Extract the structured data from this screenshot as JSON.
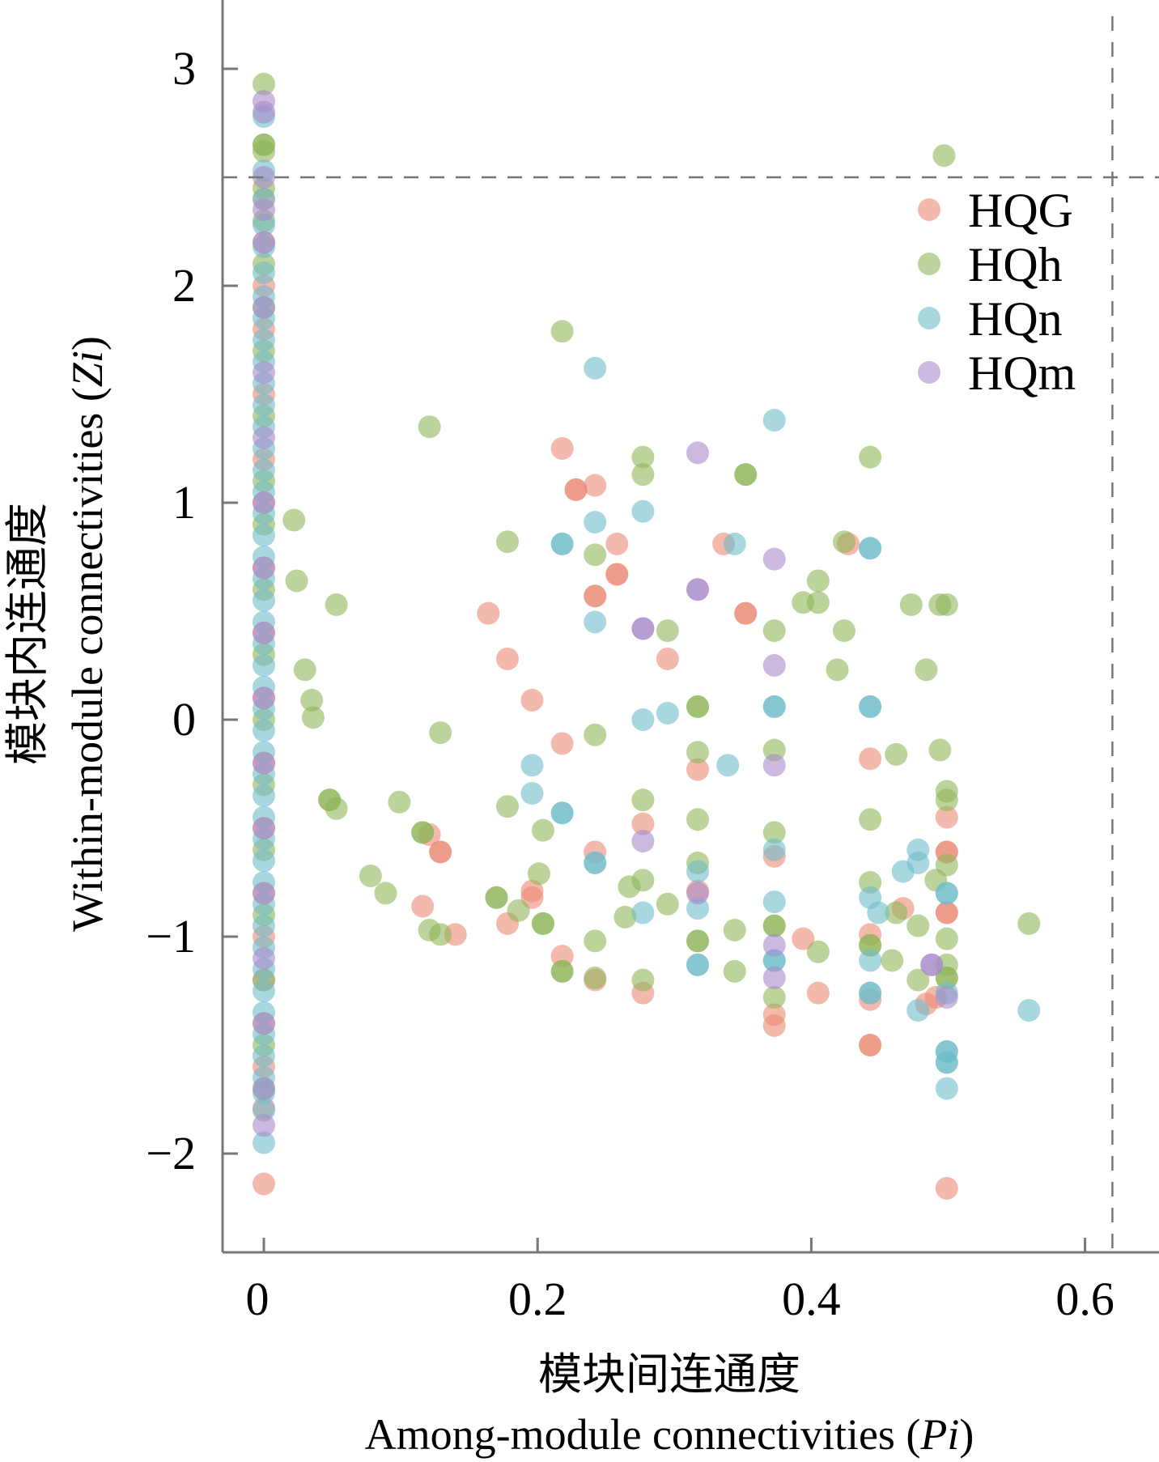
{
  "chart_data": {
    "type": "scatter",
    "title": "",
    "xlabel_cn": "模块间连通度",
    "xlabel_en": "Among-module connectivities (Pi)",
    "ylabel_cn": "模块内连通度",
    "ylabel_en": "Within-module connectivities (Zi)",
    "xlim": [
      -0.015,
      0.655
    ],
    "ylim": [
      -2.45,
      3.3
    ],
    "xticks": [
      0,
      0.2,
      0.4,
      0.6
    ],
    "xtick_labels": [
      "0",
      "0.2",
      "0.4",
      "0.6"
    ],
    "yticks": [
      3,
      2,
      1,
      0,
      -1,
      -2
    ],
    "ytick_labels": [
      "3",
      "2",
      "1",
      "0",
      "−1",
      "−2"
    ],
    "thresholds": {
      "zi": 2.5,
      "pi": 0.62
    },
    "grid": false,
    "legend_position": "top-right",
    "series": [
      {
        "name": "HQG",
        "color": "#EB8A74",
        "zero_pi_zi": [
          2.4,
          2.2,
          2.0,
          1.8,
          1.5,
          1.2,
          1.0,
          0.7,
          0.4,
          0.1,
          -0.2,
          -0.5,
          -0.8,
          -1.0,
          -1.2,
          -1.4,
          -1.6,
          -1.79,
          -2.14
        ],
        "points": [
          [
            0.218,
            1.25
          ],
          [
            0.228,
            1.06
          ],
          [
            0.228,
            1.06
          ],
          [
            0.242,
            1.08
          ],
          [
            0.242,
            0.57
          ],
          [
            0.242,
            0.57
          ],
          [
            0.258,
            0.81
          ],
          [
            0.258,
            0.67
          ],
          [
            0.258,
            0.67
          ],
          [
            0.164,
            0.49
          ],
          [
            0.178,
            0.28
          ],
          [
            0.196,
            0.09
          ],
          [
            0.218,
            -0.11
          ],
          [
            0.121,
            -0.53
          ],
          [
            0.129,
            -0.61
          ],
          [
            0.129,
            -0.61
          ],
          [
            0.116,
            -0.86
          ],
          [
            0.14,
            -0.99
          ],
          [
            0.178,
            -0.94
          ],
          [
            0.196,
            -0.79
          ],
          [
            0.196,
            -0.82
          ],
          [
            0.218,
            -1.09
          ],
          [
            0.242,
            -0.61
          ],
          [
            0.242,
            -1.2
          ],
          [
            0.277,
            -0.48
          ],
          [
            0.277,
            -1.26
          ],
          [
            0.295,
            0.28
          ],
          [
            0.317,
            -0.23
          ],
          [
            0.317,
            -0.79
          ],
          [
            0.336,
            0.81
          ],
          [
            0.352,
            0.49
          ],
          [
            0.352,
            0.49
          ],
          [
            0.373,
            -0.63
          ],
          [
            0.373,
            -1.36
          ],
          [
            0.373,
            -1.41
          ],
          [
            0.394,
            -1.01
          ],
          [
            0.405,
            -1.26
          ],
          [
            0.427,
            0.81
          ],
          [
            0.443,
            -0.18
          ],
          [
            0.443,
            -0.99
          ],
          [
            0.443,
            -1.29
          ],
          [
            0.443,
            -1.5
          ],
          [
            0.443,
            -1.5
          ],
          [
            0.467,
            -0.87
          ],
          [
            0.484,
            -1.31
          ],
          [
            0.491,
            -1.28
          ],
          [
            0.499,
            -0.45
          ],
          [
            0.499,
            -0.61
          ],
          [
            0.499,
            -0.61
          ],
          [
            0.499,
            -0.89
          ],
          [
            0.499,
            -0.89
          ],
          [
            0.499,
            -2.16
          ]
        ]
      },
      {
        "name": "HQh",
        "color": "#8FB55A",
        "zero_pi_zi": [
          2.93,
          2.65,
          2.65,
          2.62,
          2.45,
          2.3,
          2.1,
          1.9,
          1.7,
          1.4,
          1.1,
          0.9,
          0.6,
          0.3,
          0.0,
          -0.3,
          -0.6,
          -0.9,
          -1.2,
          -1.5,
          -1.7
        ],
        "points": [
          [
            0.497,
            2.6
          ],
          [
            0.218,
            1.79
          ],
          [
            0.121,
            1.35
          ],
          [
            0.022,
            0.92
          ],
          [
            0.024,
            0.64
          ],
          [
            0.053,
            0.53
          ],
          [
            0.03,
            0.23
          ],
          [
            0.035,
            0.09
          ],
          [
            0.036,
            0.01
          ],
          [
            0.048,
            -0.37
          ],
          [
            0.048,
            -0.37
          ],
          [
            0.053,
            -0.41
          ],
          [
            0.129,
            -0.06
          ],
          [
            0.099,
            -0.38
          ],
          [
            0.116,
            -0.52
          ],
          [
            0.116,
            -0.52
          ],
          [
            0.078,
            -0.72
          ],
          [
            0.089,
            -0.8
          ],
          [
            0.121,
            -0.97
          ],
          [
            0.129,
            -0.99
          ],
          [
            0.17,
            -0.82
          ],
          [
            0.17,
            -0.82
          ],
          [
            0.178,
            -0.4
          ],
          [
            0.178,
            0.82
          ],
          [
            0.186,
            -0.88
          ],
          [
            0.201,
            -0.71
          ],
          [
            0.204,
            -0.51
          ],
          [
            0.204,
            -0.94
          ],
          [
            0.204,
            -0.94
          ],
          [
            0.218,
            -1.16
          ],
          [
            0.218,
            -1.16
          ],
          [
            0.242,
            0.76
          ],
          [
            0.242,
            -0.07
          ],
          [
            0.242,
            -1.02
          ],
          [
            0.242,
            -1.19
          ],
          [
            0.264,
            -0.91
          ],
          [
            0.267,
            -0.77
          ],
          [
            0.277,
            1.21
          ],
          [
            0.277,
            1.13
          ],
          [
            0.277,
            -0.37
          ],
          [
            0.277,
            -0.74
          ],
          [
            0.277,
            -1.2
          ],
          [
            0.295,
            0.41
          ],
          [
            0.295,
            -0.85
          ],
          [
            0.317,
            0.06
          ],
          [
            0.317,
            0.06
          ],
          [
            0.317,
            -0.15
          ],
          [
            0.317,
            -0.46
          ],
          [
            0.317,
            -0.66
          ],
          [
            0.317,
            -1.02
          ],
          [
            0.317,
            -1.02
          ],
          [
            0.344,
            -0.97
          ],
          [
            0.344,
            -1.16
          ],
          [
            0.352,
            1.13
          ],
          [
            0.352,
            1.13
          ],
          [
            0.373,
            0.41
          ],
          [
            0.373,
            -0.14
          ],
          [
            0.373,
            -0.52
          ],
          [
            0.373,
            -0.95
          ],
          [
            0.373,
            -0.95
          ],
          [
            0.373,
            -1.28
          ],
          [
            0.394,
            0.54
          ],
          [
            0.405,
            0.64
          ],
          [
            0.405,
            0.54
          ],
          [
            0.405,
            -1.07
          ],
          [
            0.419,
            0.23
          ],
          [
            0.424,
            0.82
          ],
          [
            0.424,
            0.41
          ],
          [
            0.443,
            1.21
          ],
          [
            0.443,
            -0.46
          ],
          [
            0.443,
            -0.75
          ],
          [
            0.443,
            -1.04
          ],
          [
            0.443,
            -1.04
          ],
          [
            0.462,
            -0.16
          ],
          [
            0.462,
            -0.89
          ],
          [
            0.459,
            -1.11
          ],
          [
            0.473,
            0.53
          ],
          [
            0.484,
            0.23
          ],
          [
            0.478,
            -0.95
          ],
          [
            0.478,
            -1.2
          ],
          [
            0.491,
            -0.74
          ],
          [
            0.494,
            -0.14
          ],
          [
            0.494,
            0.53
          ],
          [
            0.499,
            0.53
          ],
          [
            0.499,
            -0.33
          ],
          [
            0.499,
            -0.37
          ],
          [
            0.499,
            -0.67
          ],
          [
            0.499,
            -1.01
          ],
          [
            0.499,
            -1.13
          ],
          [
            0.499,
            -1.19
          ],
          [
            0.499,
            -1.19
          ],
          [
            0.559,
            -0.94
          ]
        ]
      },
      {
        "name": "HQn",
        "color": "#6FBCCA",
        "zero_pi_zi": [
          2.78,
          2.53,
          2.4,
          2.28,
          2.18,
          2.06,
          1.95,
          1.85,
          1.75,
          1.65,
          1.55,
          1.45,
          1.35,
          1.25,
          1.15,
          1.05,
          0.95,
          0.85,
          0.75,
          0.65,
          0.55,
          0.45,
          0.35,
          0.25,
          0.15,
          0.05,
          -0.05,
          -0.15,
          -0.25,
          -0.35,
          -0.45,
          -0.55,
          -0.65,
          -0.75,
          -0.85,
          -0.95,
          -1.05,
          -1.15,
          -1.25,
          -1.35,
          -1.45,
          -1.55,
          -1.65,
          -1.72,
          -1.8,
          -1.95
        ],
        "points": [
          [
            0.242,
            1.62
          ],
          [
            0.373,
            1.38
          ],
          [
            0.242,
            0.91
          ],
          [
            0.277,
            0.96
          ],
          [
            0.218,
            0.81
          ],
          [
            0.218,
            0.81
          ],
          [
            0.344,
            0.81
          ],
          [
            0.443,
            0.79
          ],
          [
            0.443,
            0.79
          ],
          [
            0.242,
            0.45
          ],
          [
            0.277,
            0.0
          ],
          [
            0.295,
            0.03
          ],
          [
            0.373,
            0.06
          ],
          [
            0.373,
            0.06
          ],
          [
            0.443,
            0.06
          ],
          [
            0.443,
            0.06
          ],
          [
            0.196,
            -0.21
          ],
          [
            0.196,
            -0.34
          ],
          [
            0.218,
            -0.43
          ],
          [
            0.218,
            -0.43
          ],
          [
            0.242,
            -0.66
          ],
          [
            0.242,
            -0.66
          ],
          [
            0.277,
            -0.89
          ],
          [
            0.317,
            -0.7
          ],
          [
            0.317,
            -0.87
          ],
          [
            0.317,
            -1.13
          ],
          [
            0.317,
            -1.13
          ],
          [
            0.339,
            -0.21
          ],
          [
            0.373,
            -0.6
          ],
          [
            0.373,
            -0.84
          ],
          [
            0.373,
            -1.11
          ],
          [
            0.373,
            -1.11
          ],
          [
            0.443,
            -0.82
          ],
          [
            0.443,
            -1.11
          ],
          [
            0.443,
            -1.26
          ],
          [
            0.443,
            -1.26
          ],
          [
            0.449,
            -0.89
          ],
          [
            0.467,
            -0.7
          ],
          [
            0.478,
            -0.6
          ],
          [
            0.478,
            -0.66
          ],
          [
            0.478,
            -1.34
          ],
          [
            0.499,
            -0.8
          ],
          [
            0.499,
            -0.8
          ],
          [
            0.499,
            -1.26
          ],
          [
            0.499,
            -1.53
          ],
          [
            0.499,
            -1.53
          ],
          [
            0.499,
            -1.58
          ],
          [
            0.499,
            -1.58
          ],
          [
            0.499,
            -1.7
          ],
          [
            0.559,
            -1.34
          ]
        ]
      },
      {
        "name": "HQm",
        "color": "#A98BC9",
        "zero_pi_zi": [
          2.85,
          2.8,
          2.5,
          2.35,
          2.2,
          1.9,
          1.6,
          1.3,
          1.0,
          0.7,
          0.4,
          0.1,
          -0.2,
          -0.5,
          -0.8,
          -1.1,
          -1.4,
          -1.7,
          -1.87
        ],
        "points": [
          [
            0.317,
            1.23
          ],
          [
            0.317,
            0.6
          ],
          [
            0.317,
            0.6
          ],
          [
            0.277,
            0.42
          ],
          [
            0.277,
            0.42
          ],
          [
            0.373,
            0.74
          ],
          [
            0.373,
            0.25
          ],
          [
            0.373,
            -0.21
          ],
          [
            0.277,
            -0.56
          ],
          [
            0.317,
            -0.8
          ],
          [
            0.373,
            -1.04
          ],
          [
            0.373,
            -1.19
          ],
          [
            0.488,
            -1.13
          ],
          [
            0.488,
            -1.13
          ],
          [
            0.499,
            -1.28
          ]
        ]
      }
    ]
  }
}
